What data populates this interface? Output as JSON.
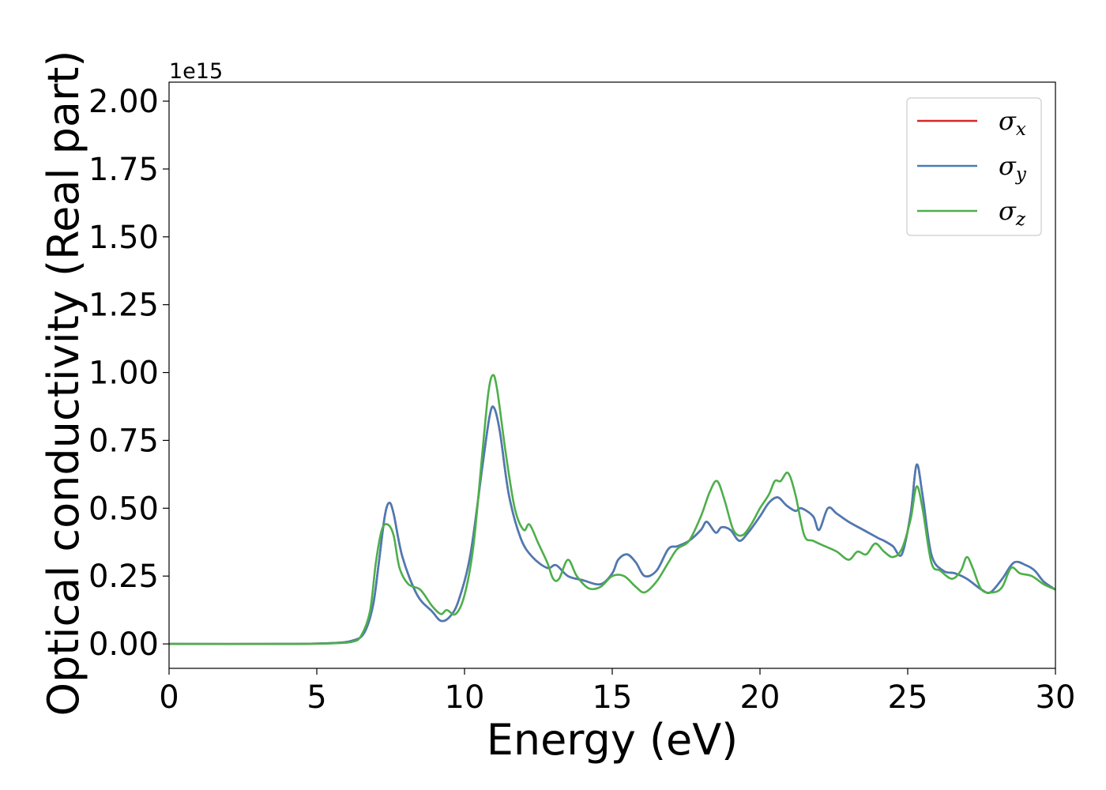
{
  "chart_data": {
    "type": "line",
    "xlabel": "Energy (eV)",
    "ylabel": "Optical conductivity (Real part)",
    "y_offset_label": "1e15",
    "y_scale_factor": 1000000000000000.0,
    "xlim": [
      0,
      30
    ],
    "ylim": [
      -0.09,
      2.07
    ],
    "x_ticks": [
      0,
      5,
      10,
      15,
      20,
      25,
      30
    ],
    "x_tick_labels": [
      "0",
      "5",
      "10",
      "15",
      "20",
      "25",
      "30"
    ],
    "y_ticks": [
      0,
      0.25,
      0.5,
      0.75,
      1.0,
      1.25,
      1.5,
      1.75,
      2.0
    ],
    "y_tick_labels": [
      "0.00",
      "0.25",
      "0.50",
      "0.75",
      "1.00",
      "1.25",
      "1.50",
      "1.75",
      "2.00"
    ],
    "grid": false,
    "legend_position": "top-right",
    "series": [
      {
        "name": "σ_x",
        "symbol": "σ",
        "subscript": "x",
        "color": "#d62728",
        "x": [
          0,
          4,
          5.5,
          6.2,
          6.6,
          6.9,
          7.1,
          7.3,
          7.45,
          7.6,
          7.9,
          8.4,
          8.9,
          9.2,
          9.5,
          9.8,
          10.2,
          10.6,
          10.85,
          11.0,
          11.2,
          11.5,
          11.9,
          12.3,
          12.8,
          13.1,
          13.5,
          14.0,
          14.6,
          15.0,
          15.2,
          15.5,
          15.8,
          16.1,
          16.5,
          16.9,
          17.2,
          17.6,
          18.0,
          18.2,
          18.5,
          18.7,
          19.0,
          19.3,
          19.6,
          20.0,
          20.3,
          20.6,
          20.9,
          21.2,
          21.4,
          21.8,
          22.0,
          22.3,
          22.6,
          23.0,
          23.5,
          24.0,
          24.2,
          24.5,
          24.8,
          25.1,
          25.3,
          25.5,
          25.8,
          26.2,
          26.6,
          27.0,
          27.5,
          27.8,
          28.2,
          28.6,
          29.0,
          29.3,
          29.6,
          30.0
        ],
        "y": [
          0.0,
          0.0,
          0.003,
          0.012,
          0.04,
          0.14,
          0.3,
          0.47,
          0.52,
          0.48,
          0.32,
          0.18,
          0.12,
          0.085,
          0.1,
          0.16,
          0.33,
          0.65,
          0.84,
          0.87,
          0.78,
          0.55,
          0.39,
          0.32,
          0.28,
          0.29,
          0.25,
          0.235,
          0.22,
          0.26,
          0.31,
          0.33,
          0.3,
          0.25,
          0.27,
          0.35,
          0.36,
          0.38,
          0.42,
          0.45,
          0.41,
          0.43,
          0.42,
          0.38,
          0.41,
          0.47,
          0.52,
          0.54,
          0.51,
          0.49,
          0.5,
          0.47,
          0.42,
          0.5,
          0.48,
          0.45,
          0.42,
          0.39,
          0.38,
          0.36,
          0.33,
          0.48,
          0.66,
          0.55,
          0.33,
          0.27,
          0.26,
          0.24,
          0.2,
          0.19,
          0.24,
          0.3,
          0.29,
          0.27,
          0.23,
          0.2
        ]
      },
      {
        "name": "σ_y",
        "symbol": "σ",
        "subscript": "y",
        "color": "#4a7bb5",
        "x": [
          0,
          4,
          5.5,
          6.2,
          6.6,
          6.9,
          7.1,
          7.3,
          7.45,
          7.6,
          7.9,
          8.4,
          8.9,
          9.2,
          9.5,
          9.8,
          10.2,
          10.6,
          10.85,
          11.0,
          11.2,
          11.5,
          11.9,
          12.3,
          12.8,
          13.1,
          13.5,
          14.0,
          14.6,
          15.0,
          15.2,
          15.5,
          15.8,
          16.1,
          16.5,
          16.9,
          17.2,
          17.6,
          18.0,
          18.2,
          18.5,
          18.7,
          19.0,
          19.3,
          19.6,
          20.0,
          20.3,
          20.6,
          20.9,
          21.2,
          21.4,
          21.8,
          22.0,
          22.3,
          22.6,
          23.0,
          23.5,
          24.0,
          24.2,
          24.5,
          24.8,
          25.1,
          25.3,
          25.5,
          25.8,
          26.2,
          26.6,
          27.0,
          27.5,
          27.8,
          28.2,
          28.6,
          29.0,
          29.3,
          29.6,
          30.0
        ],
        "y": [
          0.0,
          0.0,
          0.003,
          0.012,
          0.04,
          0.14,
          0.3,
          0.47,
          0.52,
          0.48,
          0.32,
          0.18,
          0.12,
          0.085,
          0.1,
          0.16,
          0.33,
          0.65,
          0.84,
          0.87,
          0.78,
          0.55,
          0.39,
          0.32,
          0.28,
          0.29,
          0.25,
          0.235,
          0.22,
          0.26,
          0.31,
          0.33,
          0.3,
          0.25,
          0.27,
          0.35,
          0.36,
          0.38,
          0.42,
          0.45,
          0.41,
          0.43,
          0.42,
          0.38,
          0.41,
          0.47,
          0.52,
          0.54,
          0.51,
          0.49,
          0.5,
          0.47,
          0.42,
          0.5,
          0.48,
          0.45,
          0.42,
          0.39,
          0.38,
          0.36,
          0.33,
          0.48,
          0.66,
          0.55,
          0.33,
          0.27,
          0.26,
          0.24,
          0.2,
          0.19,
          0.24,
          0.3,
          0.29,
          0.27,
          0.23,
          0.2
        ]
      },
      {
        "name": "σ_z",
        "symbol": "σ",
        "subscript": "z",
        "color": "#4daf4a",
        "x": [
          0,
          4,
          5.5,
          6.2,
          6.5,
          6.8,
          7.0,
          7.2,
          7.4,
          7.6,
          7.8,
          8.1,
          8.5,
          8.9,
          9.2,
          9.4,
          9.7,
          10.0,
          10.3,
          10.6,
          10.8,
          10.95,
          11.1,
          11.4,
          11.7,
          12.0,
          12.2,
          12.5,
          12.8,
          13.0,
          13.2,
          13.5,
          13.8,
          14.2,
          14.6,
          15.0,
          15.4,
          15.8,
          16.1,
          16.5,
          16.9,
          17.2,
          17.6,
          18.0,
          18.3,
          18.55,
          18.8,
          19.1,
          19.4,
          19.7,
          20.0,
          20.3,
          20.5,
          20.7,
          20.95,
          21.2,
          21.5,
          21.8,
          22.2,
          22.6,
          23.0,
          23.3,
          23.6,
          23.9,
          24.2,
          24.5,
          24.8,
          25.1,
          25.3,
          25.5,
          25.8,
          26.1,
          26.5,
          26.8,
          27.0,
          27.2,
          27.5,
          27.9,
          28.2,
          28.5,
          28.8,
          29.2,
          29.6,
          30.0
        ],
        "y": [
          0.0,
          0.0,
          0.002,
          0.008,
          0.03,
          0.12,
          0.3,
          0.42,
          0.44,
          0.4,
          0.28,
          0.22,
          0.2,
          0.14,
          0.11,
          0.125,
          0.11,
          0.18,
          0.36,
          0.7,
          0.92,
          0.99,
          0.94,
          0.7,
          0.5,
          0.42,
          0.44,
          0.37,
          0.3,
          0.24,
          0.24,
          0.31,
          0.25,
          0.205,
          0.21,
          0.25,
          0.25,
          0.21,
          0.19,
          0.23,
          0.3,
          0.35,
          0.38,
          0.47,
          0.56,
          0.6,
          0.53,
          0.42,
          0.4,
          0.44,
          0.5,
          0.55,
          0.6,
          0.6,
          0.63,
          0.55,
          0.4,
          0.38,
          0.36,
          0.34,
          0.31,
          0.34,
          0.33,
          0.37,
          0.34,
          0.32,
          0.35,
          0.46,
          0.58,
          0.5,
          0.3,
          0.27,
          0.24,
          0.27,
          0.32,
          0.28,
          0.2,
          0.19,
          0.21,
          0.28,
          0.26,
          0.25,
          0.22,
          0.2
        ]
      }
    ]
  }
}
